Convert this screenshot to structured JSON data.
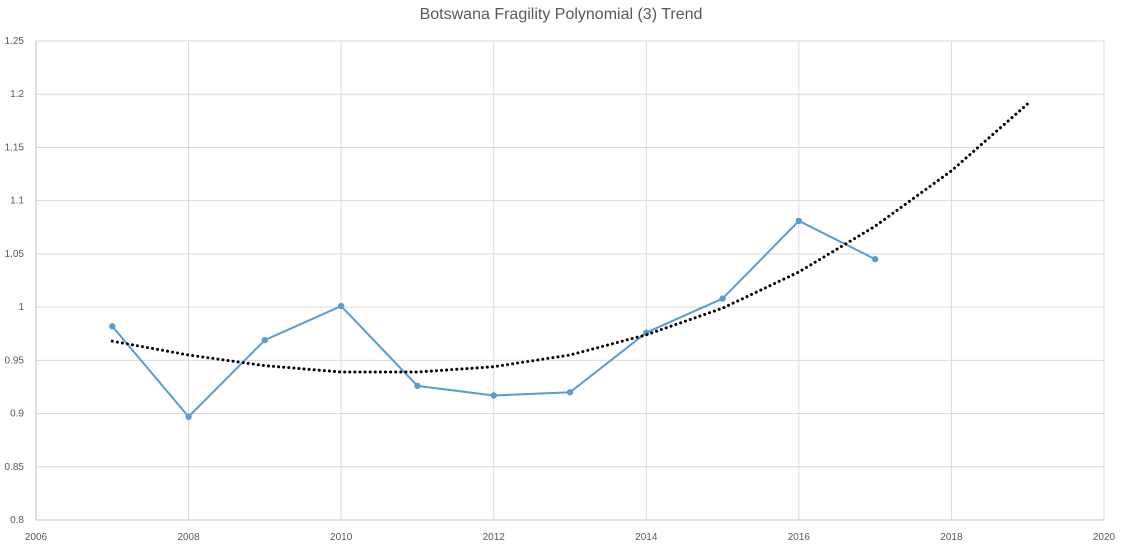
{
  "chart_data": {
    "type": "line",
    "title": "Botswana Fragility Polynomial (3) Trend",
    "xlabel": "",
    "ylabel": "",
    "xlim": [
      2006,
      2020
    ],
    "ylim": [
      0.8,
      1.25
    ],
    "x_ticks": [
      "2006",
      "2008",
      "2010",
      "2012",
      "2014",
      "2016",
      "2018",
      "2020"
    ],
    "y_ticks": [
      "0.8",
      "0.85",
      "0.9",
      "0.95",
      "1",
      "1.05",
      "1.1",
      "1.15",
      "1.2",
      "1.25"
    ],
    "grid": true,
    "series": [
      {
        "x": [
          2007,
          2008,
          2009,
          2010,
          2011,
          2012,
          2013,
          2014,
          2015,
          2016,
          2017
        ],
        "values": [
          0.982,
          0.897,
          0.969,
          1.001,
          0.926,
          0.917,
          0.92,
          0.976,
          1.008,
          1.081,
          1.045
        ],
        "color": "#5B9BD5",
        "style": "solid-with-markers"
      },
      {
        "x": [
          2007,
          2008,
          2009,
          2010,
          2011,
          2012,
          2013,
          2014,
          2015,
          2016,
          2017,
          2018,
          2019
        ],
        "values": [
          0.968,
          0.955,
          0.945,
          0.939,
          0.939,
          0.944,
          0.955,
          0.974,
          0.999,
          1.033,
          1.076,
          1.128,
          1.191
        ],
        "color": "#000000",
        "style": "dotted"
      }
    ]
  }
}
